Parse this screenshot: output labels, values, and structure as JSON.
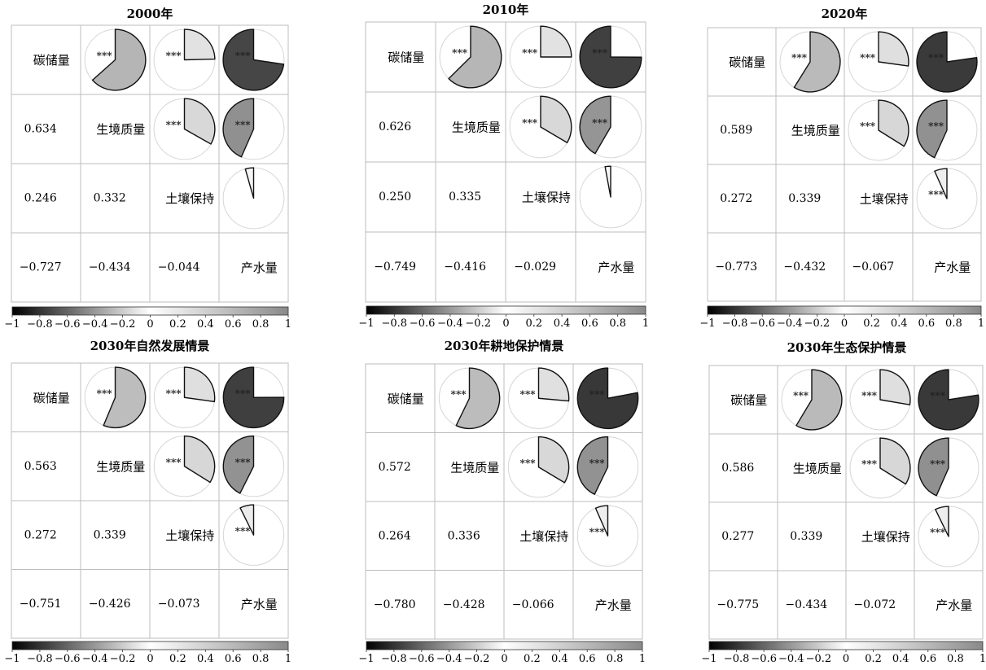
{
  "chart_data": {
    "type": "correlogram",
    "variables": [
      "碳储量",
      "生境质量",
      "土壤保持",
      "产水量"
    ],
    "significance_mark": "***",
    "colorbar": {
      "range": [
        -1,
        1
      ],
      "ticks": [
        "−1",
        "−0.8",
        "−0.6",
        "−0.4",
        "−0.2",
        "0",
        "0.2",
        "0.4",
        "0.6",
        "0.8",
        "1"
      ]
    },
    "panels": [
      {
        "title": "2000年",
        "correlations": [
          {
            "row": 2,
            "col": 1,
            "value": 0.634,
            "label": "0.634",
            "sig": true
          },
          {
            "row": 3,
            "col": 1,
            "value": 0.246,
            "label": "0.246",
            "sig": true
          },
          {
            "row": 4,
            "col": 1,
            "value": -0.727,
            "label": "−0.727",
            "sig": true
          },
          {
            "row": 3,
            "col": 2,
            "value": 0.332,
            "label": "0.332",
            "sig": true
          },
          {
            "row": 4,
            "col": 2,
            "value": -0.434,
            "label": "−0.434",
            "sig": true
          },
          {
            "row": 4,
            "col": 3,
            "value": -0.044,
            "label": "−0.044",
            "sig": false
          }
        ]
      },
      {
        "title": "2010年",
        "correlations": [
          {
            "row": 2,
            "col": 1,
            "value": 0.626,
            "label": "0.626",
            "sig": true
          },
          {
            "row": 3,
            "col": 1,
            "value": 0.25,
            "label": "0.250",
            "sig": true
          },
          {
            "row": 4,
            "col": 1,
            "value": -0.749,
            "label": "−0.749",
            "sig": true
          },
          {
            "row": 3,
            "col": 2,
            "value": 0.335,
            "label": "0.335",
            "sig": true
          },
          {
            "row": 4,
            "col": 2,
            "value": -0.416,
            "label": "−0.416",
            "sig": true
          },
          {
            "row": 4,
            "col": 3,
            "value": -0.029,
            "label": "−0.029",
            "sig": false
          }
        ]
      },
      {
        "title": "2020年",
        "correlations": [
          {
            "row": 2,
            "col": 1,
            "value": 0.589,
            "label": "0.589",
            "sig": true
          },
          {
            "row": 3,
            "col": 1,
            "value": 0.272,
            "label": "0.272",
            "sig": true
          },
          {
            "row": 4,
            "col": 1,
            "value": -0.773,
            "label": "−0.773",
            "sig": true
          },
          {
            "row": 3,
            "col": 2,
            "value": 0.339,
            "label": "0.339",
            "sig": true
          },
          {
            "row": 4,
            "col": 2,
            "value": -0.432,
            "label": "−0.432",
            "sig": true
          },
          {
            "row": 4,
            "col": 3,
            "value": -0.067,
            "label": "−0.067",
            "sig": true
          }
        ]
      },
      {
        "title": "2030年自然发展情景",
        "correlations": [
          {
            "row": 2,
            "col": 1,
            "value": 0.563,
            "label": "0.563",
            "sig": true
          },
          {
            "row": 3,
            "col": 1,
            "value": 0.272,
            "label": "0.272",
            "sig": true
          },
          {
            "row": 4,
            "col": 1,
            "value": -0.751,
            "label": "−0.751",
            "sig": true
          },
          {
            "row": 3,
            "col": 2,
            "value": 0.339,
            "label": "0.339",
            "sig": true
          },
          {
            "row": 4,
            "col": 2,
            "value": -0.426,
            "label": "−0.426",
            "sig": true
          },
          {
            "row": 4,
            "col": 3,
            "value": -0.073,
            "label": "−0.073",
            "sig": true
          }
        ]
      },
      {
        "title": "2030年耕地保护情景",
        "correlations": [
          {
            "row": 2,
            "col": 1,
            "value": 0.572,
            "label": "0.572",
            "sig": true
          },
          {
            "row": 3,
            "col": 1,
            "value": 0.264,
            "label": "0.264",
            "sig": true
          },
          {
            "row": 4,
            "col": 1,
            "value": -0.78,
            "label": "−0.780",
            "sig": true
          },
          {
            "row": 3,
            "col": 2,
            "value": 0.336,
            "label": "0.336",
            "sig": true
          },
          {
            "row": 4,
            "col": 2,
            "value": -0.428,
            "label": "−0.428",
            "sig": true
          },
          {
            "row": 4,
            "col": 3,
            "value": -0.066,
            "label": "−0.066",
            "sig": true
          }
        ]
      },
      {
        "title": "2030年生态保护情景",
        "correlations": [
          {
            "row": 2,
            "col": 1,
            "value": 0.586,
            "label": "0.586",
            "sig": true
          },
          {
            "row": 3,
            "col": 1,
            "value": 0.277,
            "label": "0.277",
            "sig": true
          },
          {
            "row": 4,
            "col": 1,
            "value": -0.775,
            "label": "−0.775",
            "sig": true
          },
          {
            "row": 3,
            "col": 2,
            "value": 0.339,
            "label": "0.339",
            "sig": true
          },
          {
            "row": 4,
            "col": 2,
            "value": -0.434,
            "label": "−0.434",
            "sig": true
          },
          {
            "row": 4,
            "col": 3,
            "value": -0.072,
            "label": "−0.072",
            "sig": true
          }
        ]
      }
    ]
  }
}
